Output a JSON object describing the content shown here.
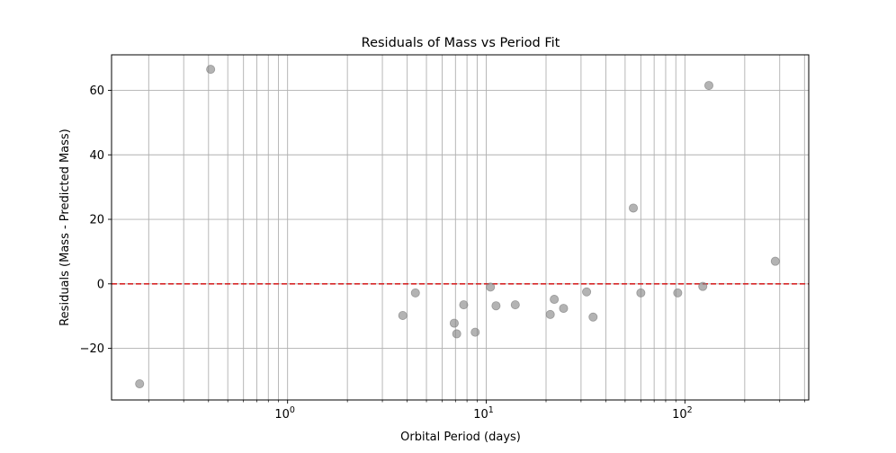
{
  "chart_data": {
    "type": "scatter",
    "title": "Residuals of Mass vs Period Fit",
    "xlabel": "Orbital Period (days)",
    "ylabel": "Residuals (Mass - Predicted Mass)",
    "x_scale": "log",
    "xlim": [
      0.13,
      420
    ],
    "ylim": [
      -36,
      71
    ],
    "grid": true,
    "x_ticks": [
      {
        "value": 1,
        "base": "10",
        "exp": "0"
      },
      {
        "value": 10,
        "base": "10",
        "exp": "1"
      },
      {
        "value": 100,
        "base": "10",
        "exp": "2"
      }
    ],
    "y_ticks": [
      -20,
      0,
      20,
      40,
      60
    ],
    "reference_line": {
      "y": 0,
      "style": "dashed",
      "color": "#d62728"
    },
    "marker_color": "#808080",
    "points": [
      {
        "x": 0.18,
        "y": -31
      },
      {
        "x": 0.41,
        "y": 66.5
      },
      {
        "x": 3.8,
        "y": -9.8
      },
      {
        "x": 4.4,
        "y": -2.8
      },
      {
        "x": 6.9,
        "y": -12.2
      },
      {
        "x": 7.1,
        "y": -15.5
      },
      {
        "x": 7.7,
        "y": -6.5
      },
      {
        "x": 8.8,
        "y": -15.0
      },
      {
        "x": 10.5,
        "y": -1.0
      },
      {
        "x": 11.2,
        "y": -6.8
      },
      {
        "x": 14.0,
        "y": -6.5
      },
      {
        "x": 21.0,
        "y": -9.5
      },
      {
        "x": 22.0,
        "y": -4.8
      },
      {
        "x": 24.5,
        "y": -7.6
      },
      {
        "x": 32.0,
        "y": -2.5
      },
      {
        "x": 34.5,
        "y": -10.3
      },
      {
        "x": 55.0,
        "y": 23.5
      },
      {
        "x": 60.0,
        "y": -2.8
      },
      {
        "x": 92.0,
        "y": -2.8
      },
      {
        "x": 123.0,
        "y": -0.8
      },
      {
        "x": 132.0,
        "y": 61.5
      },
      {
        "x": 285.0,
        "y": 7.0
      }
    ]
  }
}
